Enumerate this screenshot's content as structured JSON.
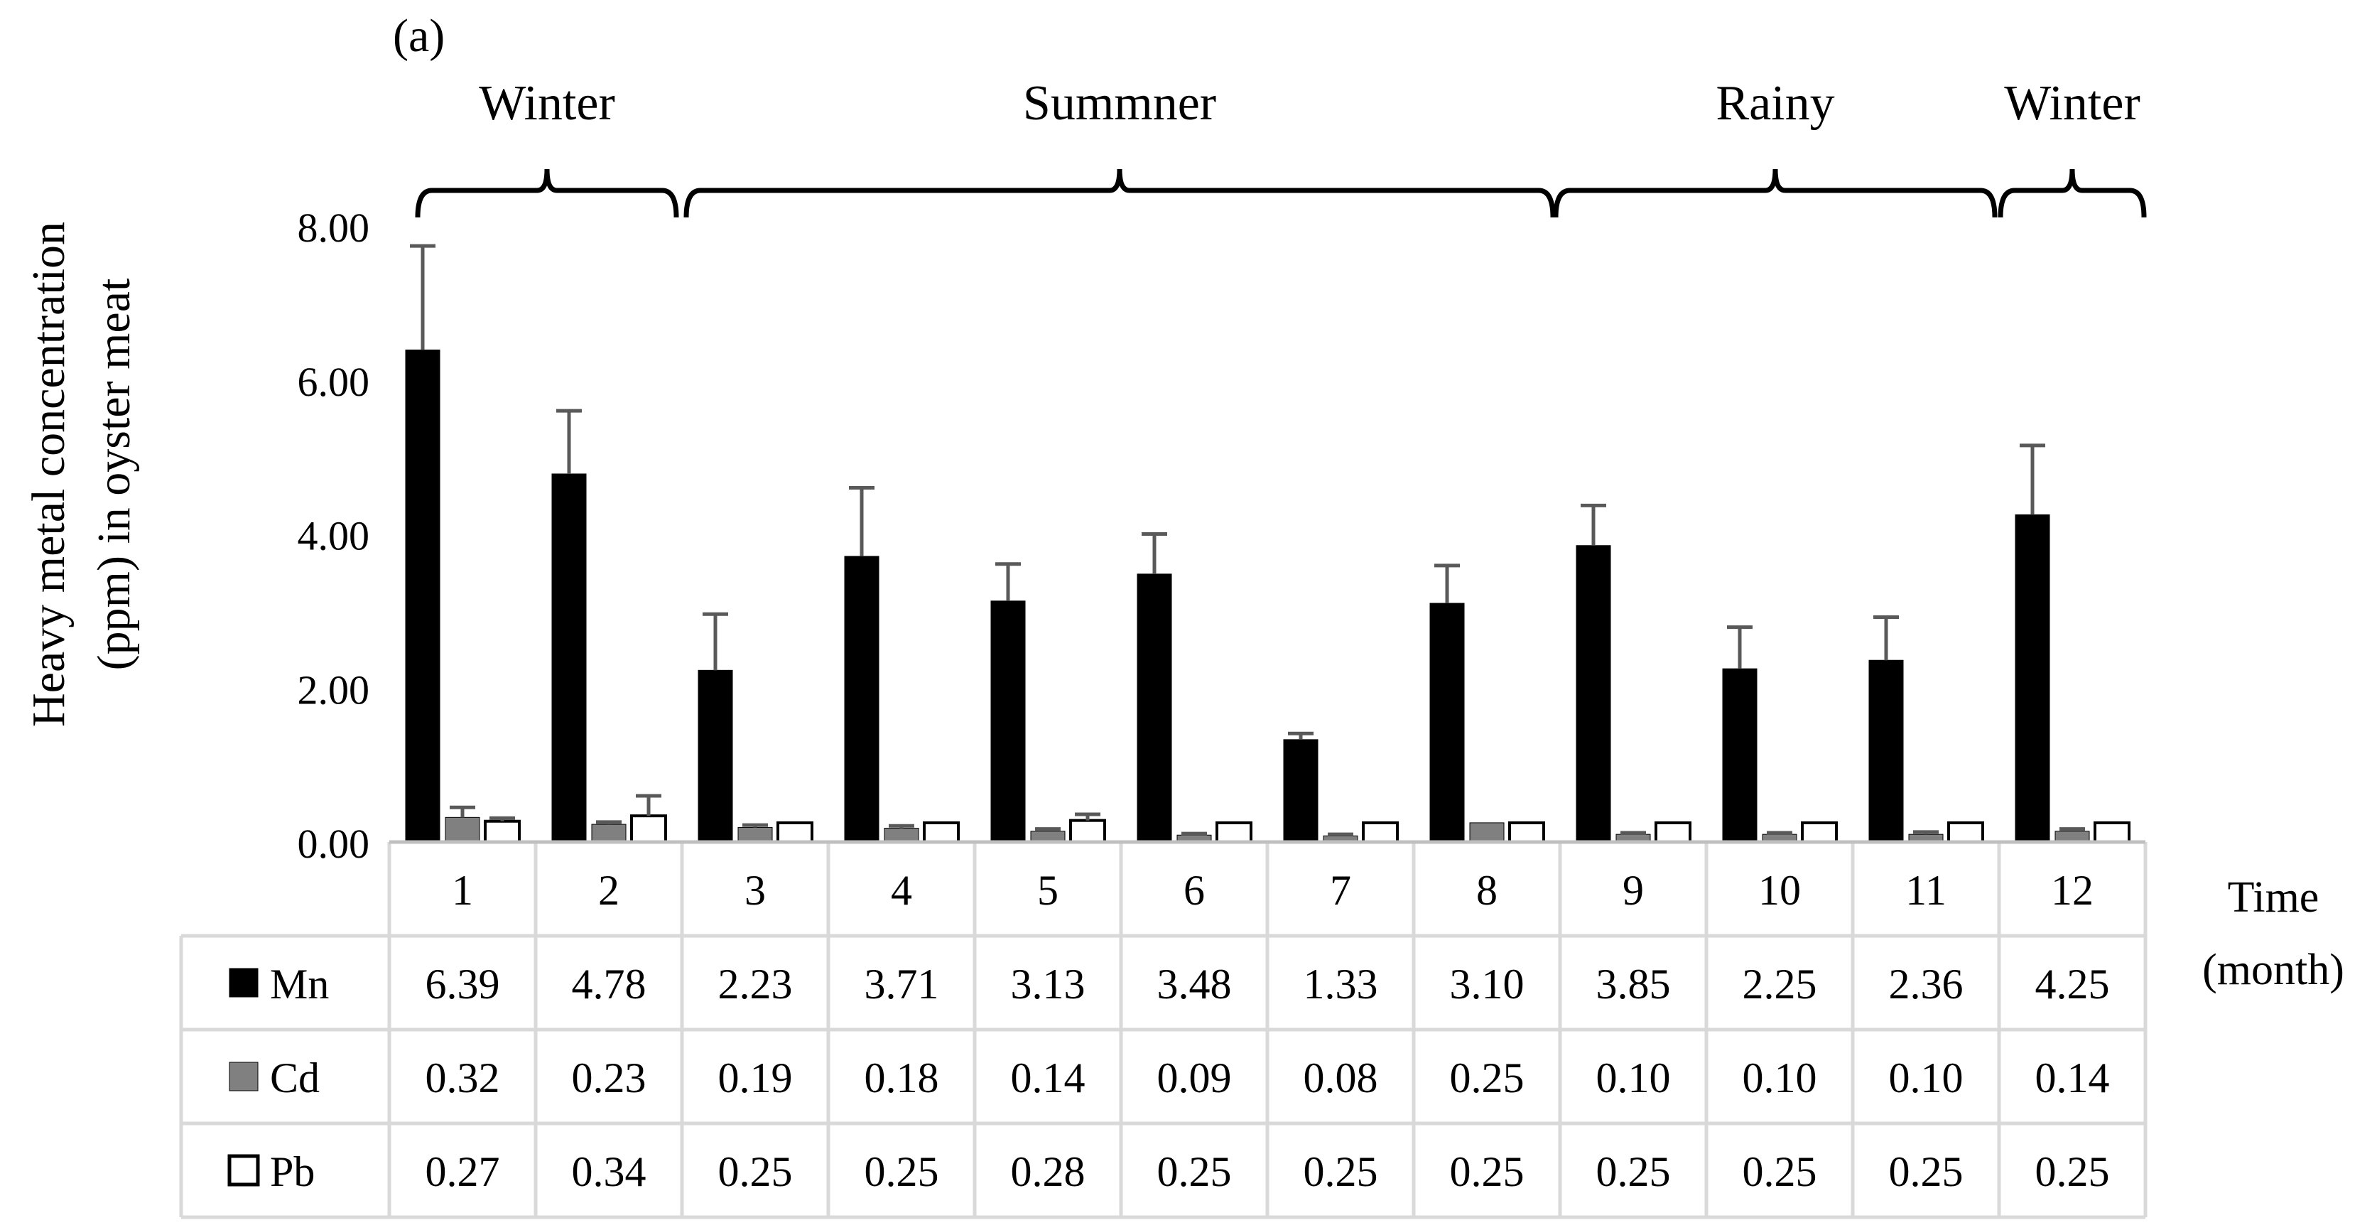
{
  "chart_data": {
    "type": "bar",
    "panel_label": "(a)",
    "ylabel": "Heavy metal concentration (ppm) in oyster meat",
    "ylabel_lines": [
      "Heavy metal concentration",
      "(ppm) in oyster meat"
    ],
    "xlabel": "Time (month)",
    "xlabel_lines": [
      "Time",
      "(month)"
    ],
    "ylim": [
      0,
      8
    ],
    "yticks": [
      "0.00",
      "2.00",
      "4.00",
      "6.00",
      "8.00"
    ],
    "categories": [
      "1",
      "2",
      "3",
      "4",
      "5",
      "6",
      "7",
      "8",
      "9",
      "10",
      "11",
      "12"
    ],
    "series": [
      {
        "name": "Mn",
        "color": "#000000",
        "values": [
          6.39,
          4.78,
          2.23,
          3.71,
          3.13,
          3.48,
          1.33,
          3.1,
          3.85,
          2.25,
          2.36,
          4.25
        ],
        "labels": [
          "6.39",
          "4.78",
          "2.23",
          "3.71",
          "3.13",
          "3.48",
          "1.33",
          "3.10",
          "3.85",
          "2.25",
          "2.36",
          "4.25"
        ],
        "errors": [
          1.35,
          0.82,
          0.73,
          0.89,
          0.48,
          0.52,
          0.08,
          0.49,
          0.52,
          0.54,
          0.56,
          0.9
        ]
      },
      {
        "name": "Cd",
        "color": "#808080",
        "values": [
          0.32,
          0.23,
          0.19,
          0.18,
          0.14,
          0.09,
          0.08,
          0.25,
          0.1,
          0.1,
          0.1,
          0.14
        ],
        "labels": [
          "0.32",
          "0.23",
          "0.19",
          "0.18",
          "0.14",
          "0.09",
          "0.08",
          "0.25",
          "0.10",
          "0.10",
          "0.10",
          "0.14"
        ],
        "errors": [
          0.13,
          0.03,
          0.03,
          0.03,
          0.03,
          0.02,
          0.02,
          0.0,
          0.02,
          0.02,
          0.03,
          0.03
        ]
      },
      {
        "name": "Pb",
        "color": "#ffffff",
        "values": [
          0.27,
          0.34,
          0.25,
          0.25,
          0.28,
          0.25,
          0.25,
          0.25,
          0.25,
          0.25,
          0.25,
          0.25
        ],
        "labels": [
          "0.27",
          "0.34",
          "0.25",
          "0.25",
          "0.28",
          "0.25",
          "0.25",
          "0.25",
          "0.25",
          "0.25",
          "0.25",
          "0.25"
        ],
        "errors": [
          0.04,
          0.26,
          0.0,
          0.0,
          0.08,
          0.0,
          0.0,
          0.0,
          0.0,
          0.0,
          0.0,
          0.0
        ]
      }
    ],
    "seasons": [
      {
        "name": "Winter",
        "from_month": 1,
        "to_month": 2
      },
      {
        "name": "Summner",
        "from_month": 2,
        "to_month": 8
      },
      {
        "name": "Rainy",
        "from_month": 8,
        "to_month": 11
      },
      {
        "name": "Winter",
        "from_month": 11,
        "to_month": 12
      }
    ],
    "legend": "data table below plot",
    "grid": false
  }
}
